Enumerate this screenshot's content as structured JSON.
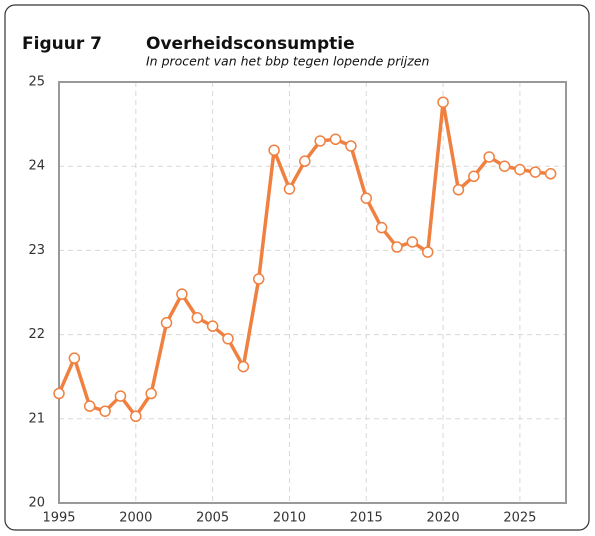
{
  "chart_data": {
    "type": "line",
    "label": "Figuur 7",
    "title": "Overheidsconsumptie",
    "subtitle": "In procent van het bbp tegen lopende prijzen",
    "x": [
      1995,
      1996,
      1997,
      1998,
      1999,
      2000,
      2001,
      2002,
      2003,
      2004,
      2005,
      2006,
      2007,
      2008,
      2009,
      2010,
      2011,
      2012,
      2013,
      2014,
      2015,
      2016,
      2017,
      2018,
      2019,
      2020,
      2021,
      2022,
      2023,
      2024,
      2025,
      2026,
      2027
    ],
    "series": [
      {
        "name": "Overheidsconsumptie",
        "color": "#f08040",
        "values": [
          21.3,
          21.72,
          21.15,
          21.09,
          21.27,
          21.03,
          21.3,
          22.14,
          22.48,
          22.2,
          22.1,
          21.95,
          21.62,
          22.66,
          24.19,
          23.73,
          24.06,
          24.3,
          24.32,
          24.24,
          23.62,
          23.27,
          23.04,
          23.1,
          22.98,
          24.76,
          23.72,
          23.88,
          24.11,
          24.0,
          23.96,
          23.93,
          23.91
        ]
      }
    ],
    "xlim": [
      1995,
      2028
    ],
    "xticks": [
      1995,
      2000,
      2005,
      2010,
      2015,
      2020,
      2025
    ],
    "ylim": [
      20,
      25
    ],
    "yticks": [
      20,
      21,
      22,
      23,
      24,
      25
    ],
    "grid": true
  }
}
